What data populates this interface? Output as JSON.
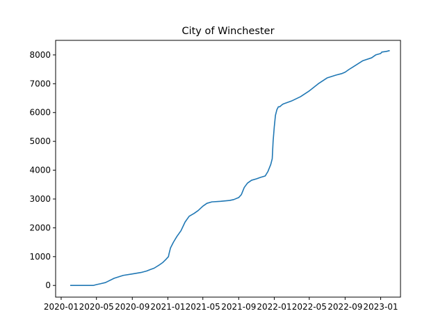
{
  "chart_data": {
    "type": "line",
    "title": "City of Winchester",
    "xlabel": "",
    "ylabel": "",
    "x_type": "date",
    "xlim": [
      "2019-12-13",
      "2023-03-10"
    ],
    "ylim": [
      -405,
      8505
    ],
    "grid": false,
    "legend": "none",
    "x_ticks": [
      {
        "date": "2020-01-01",
        "label": "2020-01"
      },
      {
        "date": "2020-05-01",
        "label": "2020-05"
      },
      {
        "date": "2020-09-01",
        "label": "2020-09"
      },
      {
        "date": "2021-01-01",
        "label": "2021-01"
      },
      {
        "date": "2021-05-01",
        "label": "2021-05"
      },
      {
        "date": "2021-09-01",
        "label": "2021-09"
      },
      {
        "date": "2022-01-01",
        "label": "2022-01"
      },
      {
        "date": "2022-05-01",
        "label": "2022-05"
      },
      {
        "date": "2022-09-01",
        "label": "2022-09"
      },
      {
        "date": "2023-01-01",
        "label": "2023-01"
      }
    ],
    "y_ticks": [
      0,
      1000,
      2000,
      3000,
      4000,
      5000,
      6000,
      7000,
      8000
    ],
    "series": [
      {
        "color": "#1f77b4",
        "x": [
          "2020-02-01",
          "2020-03-01",
          "2020-04-01",
          "2020-04-20",
          "2020-05-01",
          "2020-05-15",
          "2020-06-01",
          "2020-07-01",
          "2020-08-01",
          "2020-09-01",
          "2020-10-01",
          "2020-10-20",
          "2020-11-01",
          "2020-11-15",
          "2020-12-01",
          "2020-12-15",
          "2020-12-25",
          "2021-01-03",
          "2021-01-05",
          "2021-01-10",
          "2021-01-20",
          "2021-02-01",
          "2021-02-15",
          "2021-03-01",
          "2021-03-15",
          "2021-04-01",
          "2021-04-15",
          "2021-05-01",
          "2021-05-15",
          "2021-06-01",
          "2021-07-01",
          "2021-08-01",
          "2021-08-15",
          "2021-09-01",
          "2021-09-10",
          "2021-09-20",
          "2021-10-01",
          "2021-10-15",
          "2021-11-01",
          "2021-11-15",
          "2021-12-01",
          "2021-12-10",
          "2021-12-20",
          "2021-12-25",
          "2021-12-28",
          "2022-01-01",
          "2022-01-05",
          "2022-01-10",
          "2022-01-15",
          "2022-01-20",
          "2022-01-25",
          "2022-02-01",
          "2022-02-15",
          "2022-03-01",
          "2022-04-01",
          "2022-05-01",
          "2022-06-01",
          "2022-07-01",
          "2022-08-01",
          "2022-08-20",
          "2022-09-01",
          "2022-09-15",
          "2022-10-01",
          "2022-11-01",
          "2022-12-01",
          "2022-12-15",
          "2023-01-01",
          "2023-01-05",
          "2023-01-20",
          "2023-02-01"
        ],
        "y": [
          0,
          0,
          0,
          0,
          30,
          60,
          100,
          250,
          350,
          400,
          450,
          500,
          550,
          600,
          700,
          800,
          900,
          1000,
          1100,
          1300,
          1500,
          1700,
          1900,
          2200,
          2400,
          2500,
          2600,
          2750,
          2850,
          2900,
          2920,
          2950,
          2980,
          3050,
          3150,
          3400,
          3550,
          3650,
          3700,
          3750,
          3800,
          3950,
          4200,
          4400,
          5000,
          5500,
          5900,
          6100,
          6200,
          6200,
          6250,
          6300,
          6350,
          6400,
          6550,
          6750,
          7000,
          7200,
          7300,
          7350,
          7400,
          7500,
          7600,
          7800,
          7900,
          8000,
          8050,
          8100,
          8120,
          8150
        ]
      }
    ]
  }
}
